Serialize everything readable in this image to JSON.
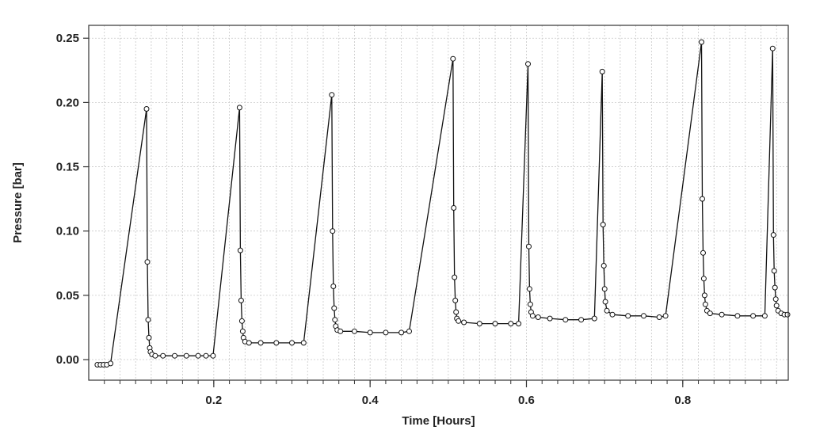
{
  "chart_data": {
    "type": "line",
    "title": "",
    "xlabel": "Time [Hours]",
    "ylabel": "Pressure [bar]",
    "xlim": [
      0.04,
      0.935
    ],
    "ylim": [
      -0.016,
      0.26
    ],
    "x_ticks": [
      0.2,
      0.4,
      0.6,
      0.8
    ],
    "x_tick_labels": [
      "0.2",
      "0.4",
      "0.6",
      "0.8"
    ],
    "y_ticks": [
      0.0,
      0.05,
      0.1,
      0.15,
      0.2,
      0.25
    ],
    "y_tick_labels": [
      "0.00",
      "0.05",
      "0.10",
      "0.15",
      "0.20",
      "0.25"
    ],
    "grid": true,
    "legend": "none",
    "colors": {
      "line": "#111111",
      "marker_fill": "#ffffff",
      "grid": "#c8c8c8"
    },
    "series": [
      {
        "points": [
          [
            0.051,
            -0.004
          ],
          [
            0.055,
            -0.004
          ],
          [
            0.059,
            -0.004
          ],
          [
            0.063,
            -0.004
          ],
          [
            0.068,
            -0.003
          ],
          [
            0.114,
            0.195
          ],
          [
            0.115,
            0.076
          ],
          [
            0.116,
            0.031
          ],
          [
            0.117,
            0.017
          ],
          [
            0.118,
            0.009
          ],
          [
            0.119,
            0.006
          ],
          [
            0.121,
            0.004
          ],
          [
            0.125,
            0.003
          ],
          [
            0.135,
            0.003
          ],
          [
            0.15,
            0.003
          ],
          [
            0.165,
            0.003
          ],
          [
            0.18,
            0.003
          ],
          [
            0.19,
            0.003
          ],
          [
            0.199,
            0.003
          ],
          [
            0.233,
            0.196
          ],
          [
            0.234,
            0.085
          ],
          [
            0.235,
            0.046
          ],
          [
            0.236,
            0.03
          ],
          [
            0.237,
            0.022
          ],
          [
            0.238,
            0.017
          ],
          [
            0.24,
            0.014
          ],
          [
            0.245,
            0.013
          ],
          [
            0.26,
            0.013
          ],
          [
            0.28,
            0.013
          ],
          [
            0.3,
            0.013
          ],
          [
            0.315,
            0.013
          ],
          [
            0.351,
            0.206
          ],
          [
            0.352,
            0.1
          ],
          [
            0.353,
            0.057
          ],
          [
            0.354,
            0.04
          ],
          [
            0.355,
            0.031
          ],
          [
            0.356,
            0.026
          ],
          [
            0.358,
            0.023
          ],
          [
            0.362,
            0.022
          ],
          [
            0.38,
            0.022
          ],
          [
            0.4,
            0.021
          ],
          [
            0.42,
            0.021
          ],
          [
            0.44,
            0.021
          ],
          [
            0.45,
            0.022
          ],
          [
            0.506,
            0.234
          ],
          [
            0.507,
            0.118
          ],
          [
            0.508,
            0.064
          ],
          [
            0.509,
            0.046
          ],
          [
            0.51,
            0.037
          ],
          [
            0.511,
            0.032
          ],
          [
            0.513,
            0.03
          ],
          [
            0.52,
            0.029
          ],
          [
            0.54,
            0.028
          ],
          [
            0.56,
            0.028
          ],
          [
            0.58,
            0.028
          ],
          [
            0.59,
            0.028
          ],
          [
            0.602,
            0.23
          ],
          [
            0.603,
            0.088
          ],
          [
            0.604,
            0.055
          ],
          [
            0.605,
            0.043
          ],
          [
            0.606,
            0.037
          ],
          [
            0.608,
            0.034
          ],
          [
            0.615,
            0.033
          ],
          [
            0.63,
            0.032
          ],
          [
            0.65,
            0.031
          ],
          [
            0.67,
            0.031
          ],
          [
            0.687,
            0.032
          ],
          [
            0.697,
            0.224
          ],
          [
            0.698,
            0.105
          ],
          [
            0.699,
            0.073
          ],
          [
            0.7,
            0.055
          ],
          [
            0.701,
            0.045
          ],
          [
            0.703,
            0.038
          ],
          [
            0.71,
            0.035
          ],
          [
            0.73,
            0.034
          ],
          [
            0.75,
            0.034
          ],
          [
            0.77,
            0.033
          ],
          [
            0.778,
            0.034
          ],
          [
            0.824,
            0.247
          ],
          [
            0.825,
            0.125
          ],
          [
            0.826,
            0.083
          ],
          [
            0.827,
            0.063
          ],
          [
            0.828,
            0.05
          ],
          [
            0.829,
            0.043
          ],
          [
            0.831,
            0.038
          ],
          [
            0.835,
            0.036
          ],
          [
            0.85,
            0.035
          ],
          [
            0.87,
            0.034
          ],
          [
            0.89,
            0.034
          ],
          [
            0.905,
            0.034
          ],
          [
            0.915,
            0.242
          ],
          [
            0.916,
            0.097
          ],
          [
            0.917,
            0.069
          ],
          [
            0.918,
            0.056
          ],
          [
            0.919,
            0.047
          ],
          [
            0.92,
            0.042
          ],
          [
            0.922,
            0.038
          ],
          [
            0.926,
            0.036
          ],
          [
            0.93,
            0.035
          ],
          [
            0.934,
            0.035
          ]
        ]
      }
    ]
  }
}
